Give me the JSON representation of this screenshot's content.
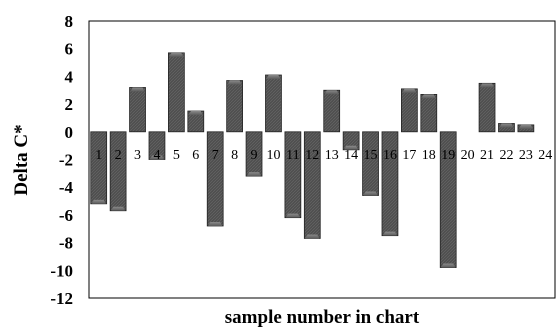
{
  "chart_data": {
    "type": "bar",
    "xlabel": "sample number in chart",
    "ylabel": "Delta C*",
    "ylim": [
      -12,
      8
    ],
    "yticks": [
      8,
      6,
      4,
      2,
      0,
      -2,
      -4,
      -6,
      -8,
      -10,
      -12
    ],
    "categories": [
      "1",
      "2",
      "3",
      "4",
      "5",
      "6",
      "7",
      "8",
      "9",
      "10",
      "11",
      "12",
      "13",
      "14",
      "15",
      "16",
      "17",
      "18",
      "19",
      "20",
      "21",
      "22",
      "23",
      "24"
    ],
    "values": [
      -5.2,
      -5.7,
      3.2,
      -2.0,
      5.7,
      1.5,
      -6.8,
      3.7,
      -3.2,
      4.1,
      -6.2,
      -7.7,
      3.0,
      -1.3,
      -4.6,
      -7.5,
      3.1,
      2.7,
      -9.8,
      0,
      3.5,
      0.6,
      0.5,
      0
    ],
    "grid": false,
    "bar_color": "#4d4d4d",
    "bar_edge_color": "#222222"
  }
}
